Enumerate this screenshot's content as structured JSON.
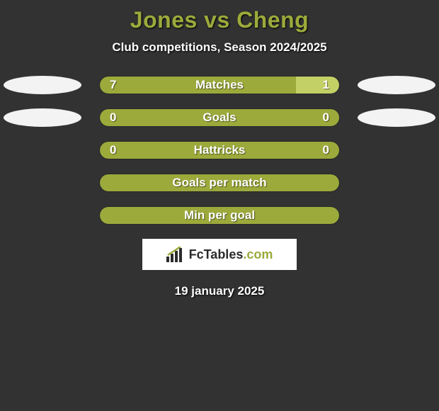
{
  "title": "Jones vs Cheng",
  "subtitle": "Club competitions, Season 2024/2025",
  "colors": {
    "background": "#313231",
    "accent": "#9caa3b",
    "accent_light": "#c3d066",
    "ellipse": "#f3f3f3",
    "text": "#ffffff"
  },
  "rows": [
    {
      "label": "Matches",
      "left_value": "7",
      "right_value": "1",
      "left_pct": 82,
      "right_pct": 18,
      "show_left_ellipse": true,
      "show_right_ellipse": true
    },
    {
      "label": "Goals",
      "left_value": "0",
      "right_value": "0",
      "left_pct": 100,
      "right_pct": 0,
      "show_left_ellipse": true,
      "show_right_ellipse": true
    },
    {
      "label": "Hattricks",
      "left_value": "0",
      "right_value": "0",
      "left_pct": 100,
      "right_pct": 0,
      "show_left_ellipse": false,
      "show_right_ellipse": false
    },
    {
      "label": "Goals per match",
      "left_value": "",
      "right_value": "",
      "left_pct": 100,
      "right_pct": 0,
      "show_left_ellipse": false,
      "show_right_ellipse": false
    },
    {
      "label": "Min per goal",
      "left_value": "",
      "right_value": "",
      "left_pct": 100,
      "right_pct": 0,
      "show_left_ellipse": false,
      "show_right_ellipse": false
    }
  ],
  "logo": {
    "text_pre": "FcTables",
    "text_post": ".com"
  },
  "date": "19 january 2025"
}
